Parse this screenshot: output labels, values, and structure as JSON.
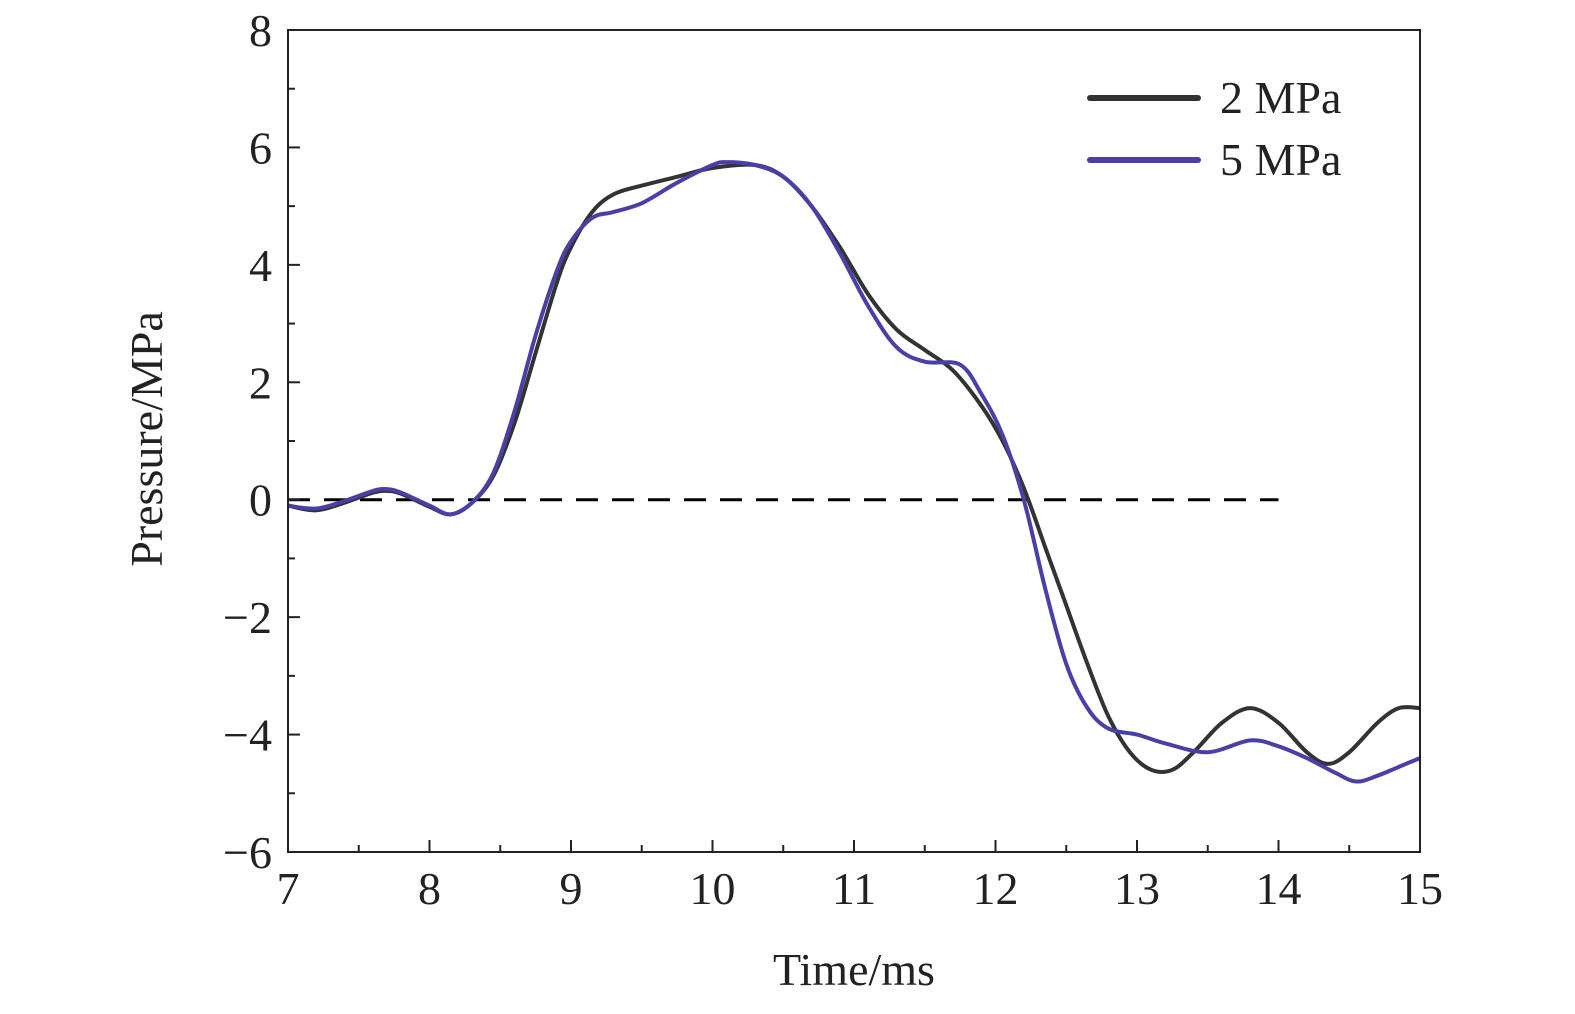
{
  "chart_data": {
    "type": "line",
    "title": "",
    "xlabel": "Time/ms",
    "ylabel": "Pressure/MPa",
    "xlim": [
      7,
      15
    ],
    "ylim": [
      -6,
      8
    ],
    "xticks": [
      7,
      8,
      9,
      10,
      11,
      12,
      13,
      14,
      15
    ],
    "yticks": [
      -6,
      -4,
      -2,
      0,
      2,
      4,
      6,
      8
    ],
    "legend_position": "top-right",
    "grid": false,
    "reference_line": {
      "y": 0,
      "x_range": [
        7,
        14
      ],
      "style": "dashed",
      "color": "#000000"
    },
    "series": [
      {
        "name": "2 MPa",
        "color": "#333333",
        "points": [
          [
            7.0,
            -0.1
          ],
          [
            7.2,
            -0.18
          ],
          [
            7.4,
            -0.05
          ],
          [
            7.6,
            0.12
          ],
          [
            7.7,
            0.15
          ],
          [
            7.8,
            0.1
          ],
          [
            8.0,
            -0.12
          ],
          [
            8.15,
            -0.25
          ],
          [
            8.3,
            -0.05
          ],
          [
            8.45,
            0.4
          ],
          [
            8.6,
            1.3
          ],
          [
            8.75,
            2.5
          ],
          [
            8.9,
            3.7
          ],
          [
            9.0,
            4.3
          ],
          [
            9.15,
            4.9
          ],
          [
            9.3,
            5.2
          ],
          [
            9.5,
            5.35
          ],
          [
            9.75,
            5.5
          ],
          [
            10.0,
            5.65
          ],
          [
            10.3,
            5.7
          ],
          [
            10.5,
            5.5
          ],
          [
            10.7,
            5.0
          ],
          [
            10.9,
            4.3
          ],
          [
            11.1,
            3.5
          ],
          [
            11.3,
            2.9
          ],
          [
            11.5,
            2.55
          ],
          [
            11.7,
            2.2
          ],
          [
            11.9,
            1.6
          ],
          [
            12.05,
            1.0
          ],
          [
            12.2,
            0.2
          ],
          [
            12.35,
            -0.8
          ],
          [
            12.5,
            -1.8
          ],
          [
            12.65,
            -2.8
          ],
          [
            12.8,
            -3.7
          ],
          [
            12.95,
            -4.3
          ],
          [
            13.1,
            -4.6
          ],
          [
            13.25,
            -4.6
          ],
          [
            13.4,
            -4.3
          ],
          [
            13.6,
            -3.8
          ],
          [
            13.8,
            -3.55
          ],
          [
            14.0,
            -3.8
          ],
          [
            14.2,
            -4.3
          ],
          [
            14.35,
            -4.5
          ],
          [
            14.5,
            -4.3
          ],
          [
            14.7,
            -3.8
          ],
          [
            14.85,
            -3.55
          ],
          [
            15.0,
            -3.55
          ]
        ]
      },
      {
        "name": "5 MPa",
        "color": "#4a3fa8",
        "points": [
          [
            7.0,
            -0.1
          ],
          [
            7.2,
            -0.15
          ],
          [
            7.4,
            -0.02
          ],
          [
            7.6,
            0.15
          ],
          [
            7.7,
            0.18
          ],
          [
            7.8,
            0.12
          ],
          [
            8.0,
            -0.1
          ],
          [
            8.15,
            -0.25
          ],
          [
            8.3,
            -0.05
          ],
          [
            8.45,
            0.45
          ],
          [
            8.6,
            1.5
          ],
          [
            8.75,
            2.8
          ],
          [
            8.9,
            3.9
          ],
          [
            9.0,
            4.4
          ],
          [
            9.15,
            4.8
          ],
          [
            9.3,
            4.9
          ],
          [
            9.5,
            5.05
          ],
          [
            9.75,
            5.4
          ],
          [
            10.0,
            5.7
          ],
          [
            10.1,
            5.75
          ],
          [
            10.3,
            5.7
          ],
          [
            10.5,
            5.5
          ],
          [
            10.7,
            5.0
          ],
          [
            10.9,
            4.2
          ],
          [
            11.1,
            3.3
          ],
          [
            11.3,
            2.6
          ],
          [
            11.5,
            2.35
          ],
          [
            11.75,
            2.3
          ],
          [
            11.9,
            1.8
          ],
          [
            12.05,
            1.1
          ],
          [
            12.2,
            0.0
          ],
          [
            12.35,
            -1.5
          ],
          [
            12.5,
            -2.8
          ],
          [
            12.65,
            -3.55
          ],
          [
            12.8,
            -3.9
          ],
          [
            13.0,
            -4.0
          ],
          [
            13.2,
            -4.15
          ],
          [
            13.5,
            -4.3
          ],
          [
            13.8,
            -4.1
          ],
          [
            14.0,
            -4.2
          ],
          [
            14.2,
            -4.4
          ],
          [
            14.4,
            -4.65
          ],
          [
            14.55,
            -4.8
          ],
          [
            14.7,
            -4.7
          ],
          [
            14.85,
            -4.55
          ],
          [
            15.0,
            -4.4
          ]
        ]
      }
    ]
  }
}
